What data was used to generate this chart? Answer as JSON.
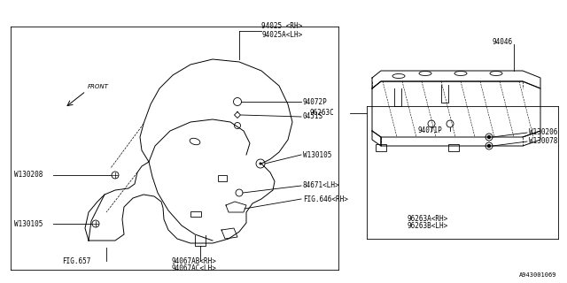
{
  "bg_color": "#ffffff",
  "line_color": "#000000",
  "fig_width": 6.4,
  "fig_height": 3.2,
  "dpi": 100,
  "watermark": "A943001069",
  "labels": {
    "94025_RH": "94025 <RH>",
    "94025A_LH": "94025A<LH>",
    "94072P": "94072P",
    "0451S": "0451S",
    "W130105_mid": "W130105",
    "84671_LH": "84671<LH>",
    "FIG646_RH": "FIG.646<RH>",
    "W130208": "W130208",
    "W130105_bot": "W130105",
    "94067AB_RH": "94067AB<RH>",
    "94067AC_LH": "94067AC<LH>",
    "FIG657": "FIG.657",
    "94046": "94046",
    "96263C": "96263C",
    "94071P": "94071P",
    "W130206": "W130206",
    "W130078": "W130078",
    "96263A_RH": "96263A<RH>",
    "96263B_LH": "96263B<LH>",
    "FRONT": "FRONT"
  },
  "font_size_label": 5.5,
  "font_size_small": 5.0
}
